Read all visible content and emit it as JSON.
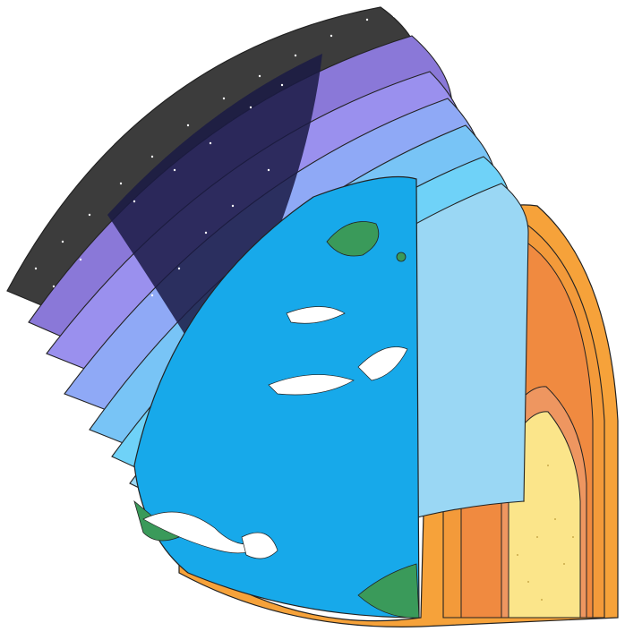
{
  "figure": {
    "description_visible_text": [],
    "subject": "earth-layers-cutaway",
    "atmosphere_layers": [
      {
        "name": "exosphere",
        "color": "#3c3c3c"
      },
      {
        "name": "thermosphere-upper",
        "color": "#8a78d8"
      },
      {
        "name": "thermosphere",
        "color": "#9a90ee"
      },
      {
        "name": "mesosphere",
        "color": "#8fa9f6"
      },
      {
        "name": "stratosphere",
        "color": "#78c4f6"
      },
      {
        "name": "troposphere",
        "color": "#6fd2f8"
      },
      {
        "name": "lower-atmosphere",
        "color": "#9ad7f4"
      }
    ],
    "interior_layers": [
      {
        "name": "crust",
        "color": "#f6a23a"
      },
      {
        "name": "upper-mantle",
        "color": "#f39a3a"
      },
      {
        "name": "lower-mantle",
        "color": "#f08a40"
      },
      {
        "name": "outer-core",
        "color": "#ee9660"
      },
      {
        "name": "inner-core",
        "color": "#fbe58a"
      }
    ],
    "colors": {
      "night-sky": "#1a1a44",
      "ocean": "#17a9ea",
      "land": "#3a9a5a",
      "clouds": "#ffffff",
      "outline": "#222222"
    }
  }
}
